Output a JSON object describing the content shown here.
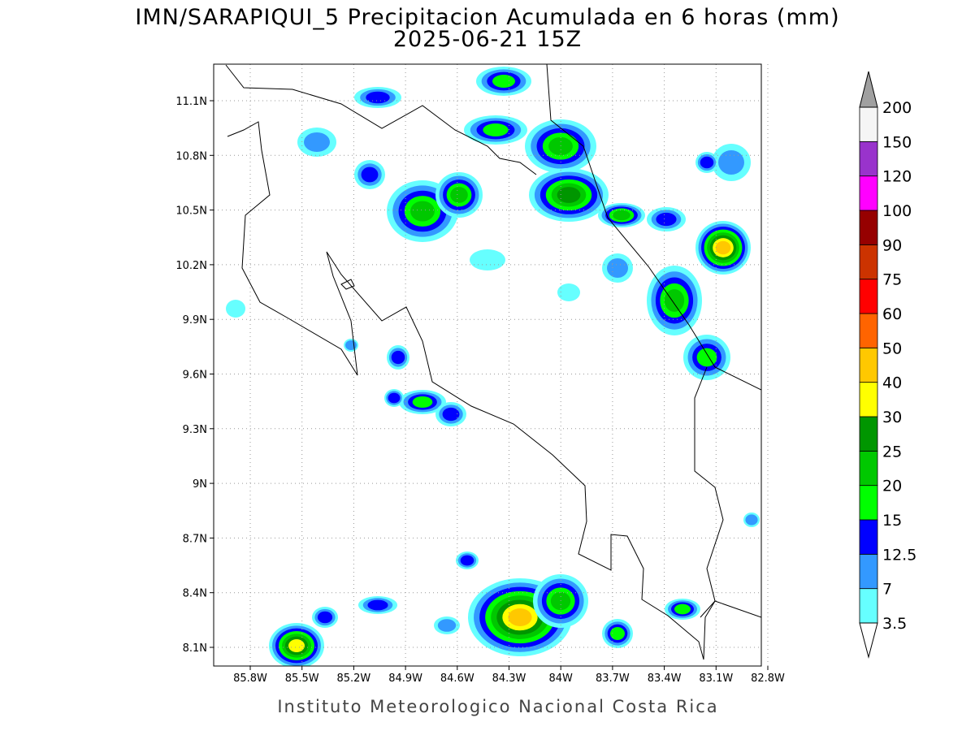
{
  "title": "IMN/SARAPIQUI_5 Precipitacion Acumulada en 6 horas (mm)",
  "subtitle": "2025-06-21 15Z",
  "footer": "Instituto Meteorologico Nacional Costa Rica",
  "lon_labels": [
    "85.8W",
    "85.5W",
    "85.2W",
    "84.9W",
    "84.6W",
    "84.3W",
    "84W",
    "83.7W",
    "83.4W",
    "83.1W",
    "82.8W"
  ],
  "lat_labels": [
    "11.1N",
    "10.8N",
    "10.5N",
    "10.2N",
    "9.9N",
    "9.6N",
    "9.3N",
    "9N",
    "8.7N",
    "8.4N",
    "8.1N"
  ],
  "grid": true,
  "colorbar": {
    "levels": [
      3.5,
      7,
      12.5,
      15,
      20,
      25,
      30,
      40,
      50,
      60,
      75,
      90,
      100,
      120,
      150,
      200
    ],
    "colors": [
      "#66ffff",
      "#3399ff",
      "#0000ff",
      "#00ff00",
      "#00c800",
      "#009600",
      "#ffff00",
      "#ffc800",
      "#ff6400",
      "#ff0000",
      "#cc3300",
      "#960000",
      "#ff00ff",
      "#9933cc",
      "#f5f5f5"
    ],
    "under_color": "#ffffff",
    "over_color": "#a0a0a0"
  }
}
